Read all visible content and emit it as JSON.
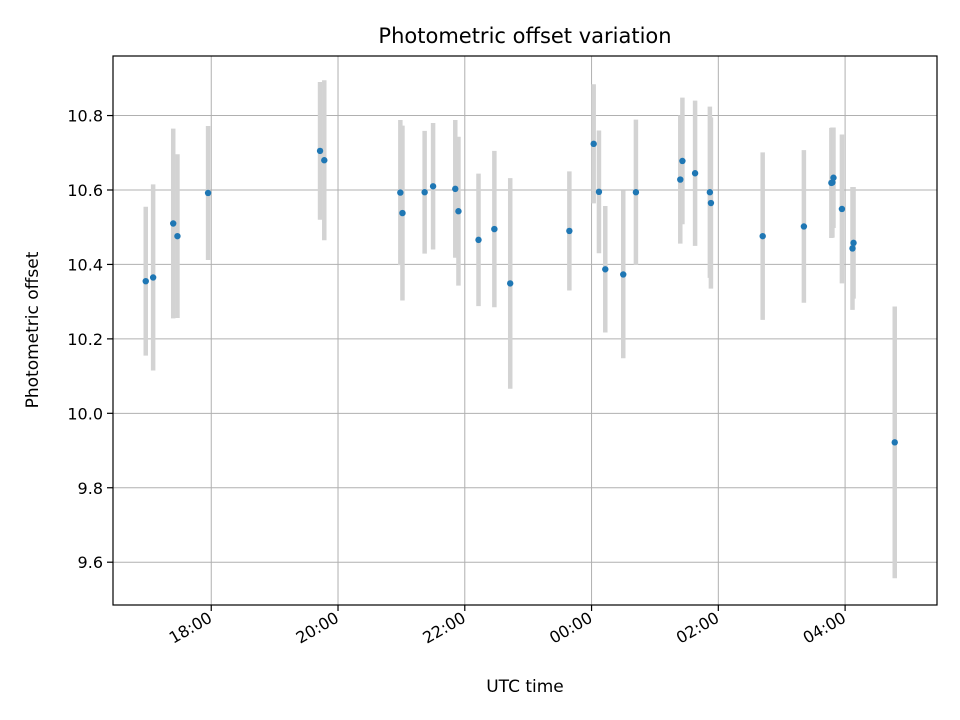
{
  "chart_data": {
    "type": "scatter",
    "title": "Photometric offset variation",
    "xlabel": "UTC time",
    "ylabel": "Photometric offset",
    "x_ticks": [
      "18:00",
      "20:00",
      "22:00",
      "00:00",
      "02:00",
      "04:00"
    ],
    "y_ticks": [
      9.6,
      9.8,
      10.0,
      10.2,
      10.4,
      10.6,
      10.8
    ],
    "xlim_hours": [
      16.45,
      29.45
    ],
    "ylim": [
      9.485,
      10.96
    ],
    "grid": true,
    "legend": "none",
    "colors": {
      "point": "#1f77b4",
      "errorbar": "#d3d3d3",
      "grid": "#b0b0b0"
    },
    "points": [
      {
        "t": "16:58",
        "y": 10.355,
        "err": 0.2
      },
      {
        "t": "17:05",
        "y": 10.365,
        "err": 0.25
      },
      {
        "t": "17:24",
        "y": 10.51,
        "err": 0.255
      },
      {
        "t": "17:28",
        "y": 10.476,
        "err": 0.22
      },
      {
        "t": "17:57",
        "y": 10.592,
        "err": 0.18
      },
      {
        "t": "19:43",
        "y": 10.705,
        "err": 0.185
      },
      {
        "t": "19:47",
        "y": 10.68,
        "err": 0.215
      },
      {
        "t": "20:59",
        "y": 10.593,
        "err": 0.195
      },
      {
        "t": "21:01",
        "y": 10.538,
        "err": 0.235
      },
      {
        "t": "21:22",
        "y": 10.594,
        "err": 0.165
      },
      {
        "t": "21:30",
        "y": 10.61,
        "err": 0.17
      },
      {
        "t": "21:51",
        "y": 10.603,
        "err": 0.185
      },
      {
        "t": "21:54",
        "y": 10.543,
        "err": 0.2
      },
      {
        "t": "22:13",
        "y": 10.466,
        "err": 0.178
      },
      {
        "t": "22:28",
        "y": 10.495,
        "err": 0.21
      },
      {
        "t": "22:43",
        "y": 10.349,
        "err": 0.283
      },
      {
        "t": "23:39",
        "y": 10.49,
        "err": 0.16
      },
      {
        "t": "00:02",
        "y": 10.724,
        "err": 0.16
      },
      {
        "t": "00:07",
        "y": 10.595,
        "err": 0.165
      },
      {
        "t": "00:13",
        "y": 10.387,
        "err": 0.17
      },
      {
        "t": "00:30",
        "y": 10.373,
        "err": 0.225
      },
      {
        "t": "00:42",
        "y": 10.594,
        "err": 0.195
      },
      {
        "t": "01:24",
        "y": 10.628,
        "err": 0.172
      },
      {
        "t": "01:26",
        "y": 10.678,
        "err": 0.17
      },
      {
        "t": "01:38",
        "y": 10.645,
        "err": 0.195
      },
      {
        "t": "01:52",
        "y": 10.594,
        "err": 0.23
      },
      {
        "t": "01:53",
        "y": 10.565,
        "err": 0.23
      },
      {
        "t": "02:42",
        "y": 10.476,
        "err": 0.225
      },
      {
        "t": "03:21",
        "y": 10.502,
        "err": 0.205
      },
      {
        "t": "03:47",
        "y": 10.619,
        "err": 0.148
      },
      {
        "t": "03:48",
        "y": 10.62,
        "err": 0.148
      },
      {
        "t": "03:49",
        "y": 10.633,
        "err": 0.135
      },
      {
        "t": "03:57",
        "y": 10.549,
        "err": 0.2
      },
      {
        "t": "04:07",
        "y": 10.443,
        "err": 0.165
      },
      {
        "t": "04:08",
        "y": 10.458,
        "err": 0.15
      },
      {
        "t": "04:47",
        "y": 9.922,
        "err": 0.365
      }
    ]
  }
}
